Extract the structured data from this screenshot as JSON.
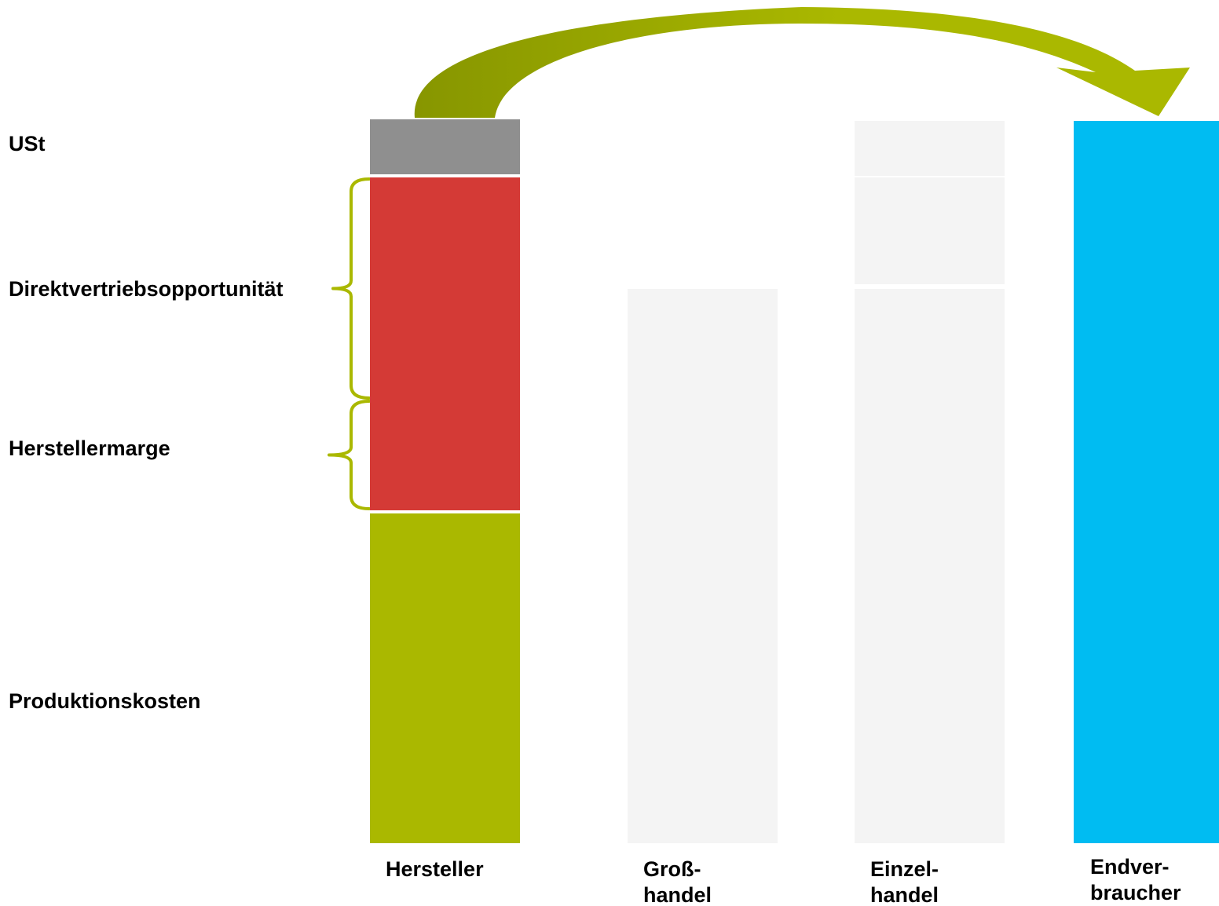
{
  "chart_data": {
    "type": "bar",
    "stacked": true,
    "categories": [
      "Hersteller",
      "Groß-\nhandel",
      "Einzel-\nhandel",
      "Endver-\nbraucher"
    ],
    "segment_labels": [
      "Produktionskosten",
      "Herstellermarge",
      "Direktvertriebsopportunität",
      "USt"
    ],
    "segments": [
      [
        {
          "label": "Produktionskosten",
          "from": 0,
          "to": 420
        },
        {
          "label": "Herstellermarge",
          "from": 424,
          "to": 565
        },
        {
          "label": "Direktvertriebsopportunität",
          "from": 565,
          "to": 848
        },
        {
          "label": "USt",
          "from": 852,
          "to": 922
        }
      ],
      [
        {
          "from": 0,
          "to": 565
        },
        {
          "from": 565,
          "to": 706
        }
      ],
      [
        {
          "from": 0,
          "to": 706
        },
        {
          "from": 712,
          "to": 848
        },
        {
          "from": 850,
          "to": 920
        }
      ],
      [
        {
          "from": 0,
          "to": 920
        }
      ]
    ],
    "colors": {
      "Produktionskosten": "#aab800",
      "margins": "#d43a36",
      "USt": "#8f8f8f",
      "faded": "#f4f4f4",
      "Endverbraucher": "#00bcf2",
      "bracket": "#aab800",
      "arrow_dark": "#879600",
      "arrow_light": "#aab800"
    },
    "brackets": [
      {
        "label": "Direktvertriebsopportunität",
        "from": 565,
        "to": 848
      },
      {
        "label": "Herstellermarge",
        "from": 424,
        "to": 565
      }
    ],
    "arrow": {
      "from": "Hersteller",
      "to": "Endver-\nbraucher"
    },
    "ylim": [
      0,
      1000
    ],
    "grid": false,
    "legend": "none",
    "title": "",
    "xlabel": "",
    "ylabel": ""
  }
}
